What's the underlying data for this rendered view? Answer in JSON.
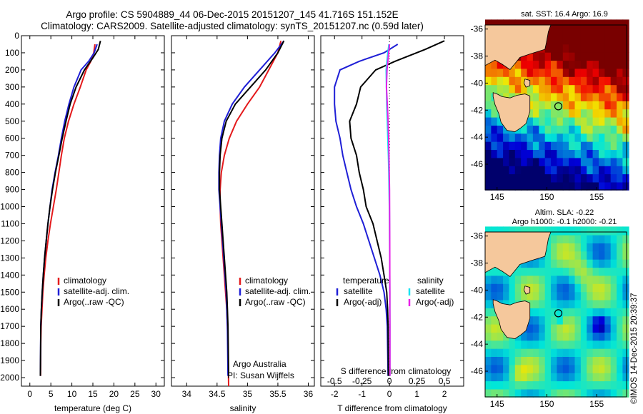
{
  "titles": {
    "line1": "Argo profile: CS 5904889_44 06-Dec-2015 20151207_145 41.716S 151.152E",
    "line2": "Climatology: CARS2009. Satellite-adjusted climatology: synTS_20151207.nc (0.59d later)"
  },
  "side_label": "©IMOS 14-Dec-2015 20:39:37",
  "colors": {
    "climatology": "#e41a1c",
    "satellite": "#1f1fd6",
    "argo": "#000000",
    "cyan": "#19e3f2",
    "magenta": "#e81fe8"
  },
  "chart_data": [
    {
      "type": "line",
      "xlabel": "temperature (deg C)",
      "ylabel": "",
      "xlim": [
        -2,
        32
      ],
      "ylim": [
        2050,
        0
      ],
      "xticks": [
        "0",
        "5",
        "10",
        "15",
        "20",
        "25",
        "30"
      ],
      "xtick_values": [
        0,
        5,
        10,
        15,
        20,
        25,
        30
      ],
      "yticks": [
        "0",
        "100",
        "200",
        "300",
        "400",
        "500",
        "600",
        "700",
        "800",
        "900",
        "1000",
        "1100",
        "1200",
        "1300",
        "1400",
        "1500",
        "1600",
        "1700",
        "1800",
        "1900",
        "2000"
      ],
      "legend": [
        "climatology",
        "satellite-adj. clim.",
        "Argo(..raw -QC)"
      ],
      "series": [
        {
          "name": "climatology",
          "color_key": "climatology",
          "x": [
            15.5,
            15.2,
            14.5,
            13.4,
            12.0,
            10.5,
            9.2,
            8.2,
            7.5,
            6.9,
            6.3,
            5.6,
            4.9,
            4.3,
            3.8,
            3.4,
            3.1,
            2.9,
            2.7,
            2.6,
            2.55
          ],
          "y": [
            50,
            100,
            150,
            200,
            300,
            400,
            500,
            600,
            700,
            800,
            900,
            1000,
            1100,
            1200,
            1300,
            1400,
            1500,
            1600,
            1700,
            1800,
            1990
          ]
        },
        {
          "name": "satellite-adj. clim.",
          "color_key": "satellite",
          "x": [
            16.0,
            15.3,
            14.0,
            12.2,
            10.5,
            9.3,
            8.3,
            7.5,
            6.8,
            6.0,
            5.3,
            4.8,
            4.3,
            3.9,
            3.5,
            3.2,
            2.95,
            2.75,
            2.6,
            2.5
          ],
          "y": [
            50,
            100,
            150,
            200,
            300,
            400,
            500,
            600,
            700,
            800,
            900,
            1000,
            1100,
            1200,
            1300,
            1400,
            1500,
            1600,
            1700,
            1990
          ]
        },
        {
          "name": "Argo(..raw -QC)",
          "color_key": "argo",
          "x": [
            16.8,
            16.3,
            15.0,
            13.0,
            11.0,
            9.6,
            8.6,
            7.7,
            6.9,
            6.1,
            5.4,
            4.8,
            4.3,
            3.9,
            3.5,
            3.2,
            2.95,
            2.75,
            2.6,
            2.5
          ],
          "y": [
            30,
            80,
            130,
            200,
            300,
            400,
            500,
            600,
            700,
            800,
            900,
            1000,
            1100,
            1200,
            1300,
            1400,
            1500,
            1600,
            1700,
            1990
          ]
        }
      ]
    },
    {
      "type": "line",
      "xlabel": "salinity",
      "xlim": [
        33.75,
        36.1
      ],
      "ylim": [
        2050,
        0
      ],
      "xticks": [
        "34",
        "34.5",
        "35",
        "35.5",
        "36"
      ],
      "xtick_values": [
        34,
        34.5,
        35,
        35.5,
        36
      ],
      "legend": [
        "climatology",
        "satellite-adj. clim.",
        "Argo(..raw -QC)"
      ],
      "annotation": [
        "Argo Australia",
        "PI: Susan Wijffels"
      ],
      "series": [
        {
          "name": "climatology",
          "color_key": "climatology",
          "x": [
            35.55,
            35.5,
            35.35,
            35.2,
            35.0,
            34.82,
            34.7,
            34.62,
            34.57,
            34.55,
            34.55,
            34.56,
            34.58,
            34.6,
            34.62,
            34.64,
            34.66,
            34.67,
            34.68,
            34.69
          ],
          "y": [
            30,
            100,
            200,
            300,
            400,
            500,
            600,
            700,
            800,
            900,
            1000,
            1100,
            1200,
            1300,
            1400,
            1500,
            1600,
            1700,
            1800,
            2050
          ]
        },
        {
          "name": "satellite-adj. clim.",
          "color_key": "satellite",
          "x": [
            35.6,
            35.45,
            35.2,
            34.95,
            34.75,
            34.62,
            34.56,
            34.54,
            34.53,
            34.53,
            34.55,
            34.57,
            34.59,
            34.61,
            34.63,
            34.65,
            34.66,
            34.67,
            34.68
          ],
          "y": [
            30,
            100,
            200,
            300,
            400,
            500,
            600,
            700,
            800,
            900,
            1000,
            1100,
            1200,
            1300,
            1400,
            1500,
            1600,
            1700,
            1990
          ]
        },
        {
          "name": "Argo(..raw -QC)",
          "color_key": "argo",
          "x": [
            35.6,
            35.5,
            35.3,
            35.05,
            34.8,
            34.65,
            34.58,
            34.55,
            34.54,
            34.54,
            34.56,
            34.58,
            34.6,
            34.62,
            34.64,
            34.66,
            34.67,
            34.68,
            34.69
          ],
          "y": [
            30,
            100,
            200,
            300,
            400,
            500,
            600,
            700,
            800,
            900,
            1000,
            1100,
            1200,
            1300,
            1400,
            1500,
            1600,
            1700,
            1990
          ]
        }
      ]
    },
    {
      "type": "line",
      "xlabel": "T difference from climatology",
      "xlabel2": "S difference from climatology",
      "xlim": [
        -2.5,
        2.7
      ],
      "ylim": [
        2050,
        0
      ],
      "xticks": [
        "-2",
        "-1",
        "0",
        "1",
        "2"
      ],
      "xtick_values": [
        -2,
        -1,
        0,
        1,
        2
      ],
      "xticks2": [
        "-0.5",
        "-0.25",
        "0",
        "0.25",
        "0.5"
      ],
      "xtick2_values": [
        -0.5,
        -0.25,
        0,
        0.25,
        0.5
      ],
      "legend_left_title": "temperature",
      "legend_right_title": "salinity",
      "legend_left": [
        "satellite",
        "Argo(-adj)"
      ],
      "legend_right": [
        "satellite",
        "Argo(-adj)"
      ],
      "series": [
        {
          "name": "temperature satellite",
          "color_key": "satellite",
          "x": [
            0.3,
            -0.2,
            -1.1,
            -1.8,
            -2.0,
            -2.0,
            -1.95,
            -1.8,
            -1.7,
            -1.55,
            -1.4,
            -1.2,
            -0.95,
            -0.75,
            -0.55,
            -0.35,
            -0.2,
            -0.12,
            -0.08,
            -0.05
          ],
          "y": [
            50,
            100,
            150,
            200,
            300,
            400,
            500,
            600,
            700,
            800,
            900,
            1000,
            1100,
            1200,
            1300,
            1400,
            1500,
            1600,
            1700,
            1990
          ]
        },
        {
          "name": "temperature Argo(-adj)",
          "color_key": "argo",
          "x": [
            2.0,
            1.3,
            0.2,
            -0.5,
            -1.05,
            -1.2,
            -1.45,
            -1.4,
            -1.2,
            -1.1,
            -0.95,
            -0.85,
            -0.6,
            -0.45,
            -0.3,
            -0.2,
            -0.1,
            -0.07,
            -0.05,
            -0.04
          ],
          "y": [
            30,
            80,
            150,
            200,
            300,
            400,
            500,
            600,
            700,
            800,
            900,
            1000,
            1100,
            1200,
            1300,
            1400,
            1500,
            1600,
            1700,
            1990
          ]
        },
        {
          "name": "salinity satellite",
          "color_key": "cyan",
          "x": [
            -0.02,
            -0.06,
            -0.12,
            -0.11,
            -0.1,
            -0.08,
            -0.06,
            -0.04,
            -0.025,
            -0.015,
            -0.005,
            0.0,
            0.005,
            0.008,
            0.01,
            0.012,
            0.014,
            0.015
          ],
          "y": [
            50,
            100,
            200,
            300,
            400,
            500,
            600,
            700,
            800,
            900,
            1000,
            1100,
            1200,
            1300,
            1400,
            1500,
            1700,
            1990
          ]
        },
        {
          "name": "salinity Argo(-adj)",
          "color_key": "magenta",
          "x": [
            0.0,
            -0.03,
            -0.09,
            -0.11,
            -0.08,
            -0.05,
            -0.03,
            -0.02,
            -0.01,
            0.0,
            0.005,
            0.01,
            0.012,
            0.014,
            0.015,
            0.016,
            0.016
          ],
          "y": [
            50,
            100,
            200,
            300,
            400,
            500,
            600,
            700,
            800,
            900,
            1000,
            1200,
            1400,
            1500,
            1600,
            1700,
            1990
          ]
        }
      ]
    }
  ],
  "maps": [
    {
      "title": "sat. SST: 16.4 Argo: 16.9",
      "title2": "",
      "lon_ticks": [
        "145",
        "150",
        "155"
      ],
      "lon_values": [
        145,
        150,
        155
      ],
      "lat_ticks": [
        "-36",
        "-38",
        "-40",
        "-42",
        "-44",
        "-46"
      ],
      "lat_values": [
        -36,
        -38,
        -40,
        -42,
        -44,
        -46
      ],
      "lonlim": [
        143.8,
        158.0
      ],
      "latlim": [
        -47.9,
        -35.7
      ],
      "marker": {
        "lon": 151.152,
        "lat": -41.716
      }
    },
    {
      "title": "Altim. SLA: -0.22",
      "title2": "Argo h1000: -0.1 h2000: -0.21",
      "lon_ticks": [
        "145",
        "150",
        "155"
      ],
      "lon_values": [
        145,
        150,
        155
      ],
      "lat_ticks": [
        "-36",
        "-38",
        "-40",
        "-42",
        "-44",
        "-46"
      ],
      "lat_values": [
        -36,
        -38,
        -40,
        -42,
        -44,
        -46
      ],
      "lonlim": [
        143.8,
        158.0
      ],
      "latlim": [
        -47.9,
        -35.7
      ],
      "marker": {
        "lon": 151.152,
        "lat": -41.716
      }
    }
  ]
}
